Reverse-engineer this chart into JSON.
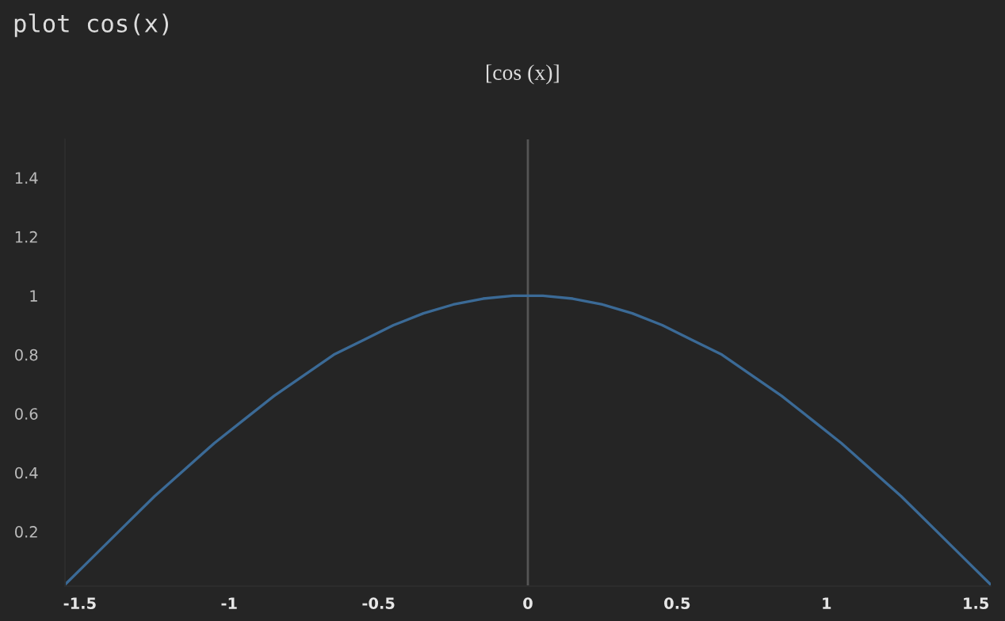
{
  "chart_data": {
    "type": "line",
    "title": "[cos (x)]",
    "annotations": [
      "plot cos(x)"
    ],
    "x": [
      -1.55,
      -1.45,
      -1.35,
      -1.25,
      -1.15,
      -1.05,
      -0.95,
      -0.85,
      -0.75,
      -0.65,
      -0.55,
      -0.45,
      -0.35,
      -0.25,
      -0.15,
      -0.05,
      0,
      0.05,
      0.15,
      0.25,
      0.35,
      0.45,
      0.55,
      0.65,
      0.75,
      0.85,
      0.95,
      1.05,
      1.15,
      1.25,
      1.35,
      1.45,
      1.55
    ],
    "series": [
      {
        "color": "#3b6a96",
        "values": [
          0.02,
          0.12,
          0.22,
          0.32,
          0.41,
          0.5,
          0.58,
          0.66,
          0.73,
          0.8,
          0.85,
          0.9,
          0.94,
          0.97,
          0.99,
          1.0,
          1.0,
          1.0,
          0.99,
          0.97,
          0.94,
          0.9,
          0.85,
          0.8,
          0.73,
          0.66,
          0.58,
          0.5,
          0.41,
          0.32,
          0.22,
          0.12,
          0.02
        ]
      }
    ],
    "xlim": [
      -1.55,
      1.55
    ],
    "ylim": [
      0.015,
      1.53
    ],
    "xticks": [
      -1.5,
      -1,
      -0.5,
      0,
      0.5,
      1,
      1.5
    ],
    "yticks": [
      0.2,
      0.4,
      0.6,
      0.8,
      1,
      1.2,
      1.4
    ],
    "ref_lines": [
      {
        "axis": "x",
        "value": 0,
        "color": "#555555"
      }
    ],
    "grid": false,
    "legend": false,
    "marker": "none",
    "line_style": "solid"
  }
}
